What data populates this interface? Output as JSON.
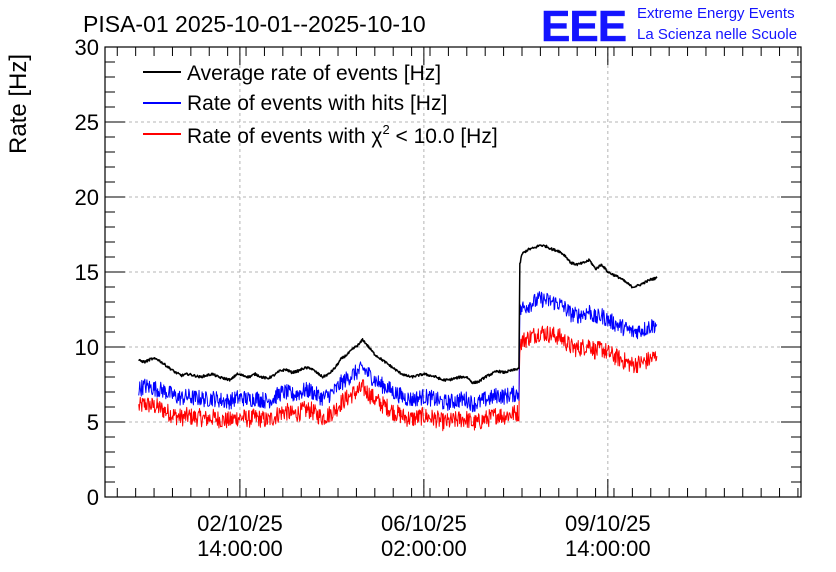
{
  "chart_data": {
    "type": "line",
    "title": "PISA-01 2025-10-01--2025-10-10",
    "ylabel": "Rate [Hz]",
    "xlabel": "",
    "ylim": [
      0,
      30
    ],
    "y_ticks": [
      0,
      5,
      10,
      15,
      20,
      25,
      30
    ],
    "y_tick_labels": [
      "0",
      "5",
      "10",
      "15",
      "20",
      "25",
      "30"
    ],
    "x_range_hours": [
      0,
      227
    ],
    "x_ticks": [
      {
        "hours": 44,
        "date": "02/10/25",
        "time": "14:00:00"
      },
      {
        "hours": 104,
        "date": "06/10/25",
        "time": "02:00:00"
      },
      {
        "hours": 164,
        "date": "09/10/25",
        "time": "14:00:00"
      }
    ],
    "grid": true,
    "legend_position": "top-left",
    "logo": {
      "text": "EEE",
      "line1": "Extreme Energy Events",
      "line2": "La Scienza nelle Scuole",
      "color": "#1414ff"
    },
    "series": [
      {
        "name": "Average rate of events [Hz]",
        "label_main": "Average rate of events [Hz]",
        "color": "#000000",
        "noise": 0.08,
        "points": [
          [
            11,
            9.1
          ],
          [
            13,
            9.0
          ],
          [
            15,
            9.2
          ],
          [
            17,
            9.2
          ],
          [
            19,
            8.9
          ],
          [
            21,
            8.6
          ],
          [
            23,
            8.3
          ],
          [
            25,
            8.1
          ],
          [
            27,
            8.2
          ],
          [
            29,
            8.1
          ],
          [
            31,
            8.0
          ],
          [
            33,
            8.1
          ],
          [
            35,
            8.2
          ],
          [
            37,
            8.0
          ],
          [
            39,
            7.9
          ],
          [
            41,
            7.8
          ],
          [
            43,
            8.2
          ],
          [
            45,
            8.1
          ],
          [
            47,
            8.0
          ],
          [
            49,
            8.2
          ],
          [
            51,
            8.0
          ],
          [
            53,
            7.9
          ],
          [
            55,
            8.1
          ],
          [
            57,
            8.4
          ],
          [
            59,
            8.5
          ],
          [
            61,
            8.3
          ],
          [
            63,
            8.4
          ],
          [
            65,
            8.6
          ],
          [
            67,
            8.6
          ],
          [
            69,
            8.3
          ],
          [
            71,
            8.0
          ],
          [
            73,
            8.2
          ],
          [
            75,
            8.6
          ],
          [
            77,
            9.2
          ],
          [
            79,
            9.5
          ],
          [
            81,
            9.9
          ],
          [
            83,
            10.2
          ],
          [
            84,
            10.5
          ],
          [
            86,
            10.0
          ],
          [
            88,
            9.5
          ],
          [
            90,
            9.2
          ],
          [
            92,
            8.9
          ],
          [
            94,
            8.6
          ],
          [
            96,
            8.3
          ],
          [
            98,
            8.1
          ],
          [
            100,
            8.0
          ],
          [
            102,
            8.1
          ],
          [
            104,
            8.2
          ],
          [
            106,
            8.1
          ],
          [
            108,
            8.0
          ],
          [
            110,
            7.8
          ],
          [
            112,
            7.8
          ],
          [
            114,
            7.9
          ],
          [
            116,
            8.0
          ],
          [
            118,
            8.0
          ],
          [
            120,
            7.6
          ],
          [
            122,
            7.7
          ],
          [
            124,
            8.0
          ],
          [
            126,
            8.2
          ],
          [
            128,
            8.4
          ],
          [
            130,
            8.3
          ],
          [
            132,
            8.4
          ],
          [
            134,
            8.5
          ],
          [
            135,
            8.6
          ],
          [
            135.3,
            15.5
          ],
          [
            136,
            16.2
          ],
          [
            138,
            16.5
          ],
          [
            140,
            16.6
          ],
          [
            142,
            16.8
          ],
          [
            144,
            16.7
          ],
          [
            146,
            16.5
          ],
          [
            148,
            16.4
          ],
          [
            150,
            16.1
          ],
          [
            152,
            15.6
          ],
          [
            154,
            15.5
          ],
          [
            156,
            15.6
          ],
          [
            158,
            15.8
          ],
          [
            160,
            15.2
          ],
          [
            162,
            15.5
          ],
          [
            164,
            15.0
          ],
          [
            166,
            14.8
          ],
          [
            168,
            14.6
          ],
          [
            170,
            14.3
          ],
          [
            172,
            14.0
          ],
          [
            174,
            14.1
          ],
          [
            176,
            14.3
          ],
          [
            178,
            14.5
          ],
          [
            180,
            14.6
          ]
        ]
      },
      {
        "name": "Rate of events with hits [Hz]",
        "label_main": "Rate of events with hits [Hz]",
        "color": "#0000ff",
        "noise": 0.55,
        "points": [
          [
            11,
            7.2
          ],
          [
            13,
            7.4
          ],
          [
            15,
            7.3
          ],
          [
            17,
            7.2
          ],
          [
            19,
            7.1
          ],
          [
            21,
            6.9
          ],
          [
            23,
            6.7
          ],
          [
            25,
            6.6
          ],
          [
            27,
            6.7
          ],
          [
            29,
            6.6
          ],
          [
            31,
            6.6
          ],
          [
            33,
            6.5
          ],
          [
            35,
            6.6
          ],
          [
            37,
            6.5
          ],
          [
            39,
            6.4
          ],
          [
            41,
            6.4
          ],
          [
            43,
            6.6
          ],
          [
            45,
            6.6
          ],
          [
            47,
            6.5
          ],
          [
            49,
            6.6
          ],
          [
            51,
            6.5
          ],
          [
            53,
            6.4
          ],
          [
            55,
            6.6
          ],
          [
            57,
            6.9
          ],
          [
            59,
            7.0
          ],
          [
            61,
            6.8
          ],
          [
            63,
            6.9
          ],
          [
            65,
            7.1
          ],
          [
            67,
            7.1
          ],
          [
            69,
            6.8
          ],
          [
            71,
            6.6
          ],
          [
            73,
            6.8
          ],
          [
            75,
            7.1
          ],
          [
            77,
            7.6
          ],
          [
            79,
            7.9
          ],
          [
            81,
            8.2
          ],
          [
            83,
            8.4
          ],
          [
            84,
            8.6
          ],
          [
            86,
            8.2
          ],
          [
            88,
            7.8
          ],
          [
            90,
            7.5
          ],
          [
            92,
            7.3
          ],
          [
            94,
            7.0
          ],
          [
            96,
            6.8
          ],
          [
            98,
            6.6
          ],
          [
            100,
            6.5
          ],
          [
            102,
            6.6
          ],
          [
            104,
            6.7
          ],
          [
            106,
            6.6
          ],
          [
            108,
            6.5
          ],
          [
            110,
            6.3
          ],
          [
            112,
            6.3
          ],
          [
            114,
            6.4
          ],
          [
            116,
            6.5
          ],
          [
            118,
            6.5
          ],
          [
            120,
            6.2
          ],
          [
            122,
            6.3
          ],
          [
            124,
            6.5
          ],
          [
            126,
            6.6
          ],
          [
            128,
            6.8
          ],
          [
            130,
            6.7
          ],
          [
            132,
            6.8
          ],
          [
            134,
            6.9
          ],
          [
            135,
            6.9
          ],
          [
            135.3,
            12.3
          ],
          [
            136,
            12.6
          ],
          [
            138,
            12.8
          ],
          [
            140,
            13.0
          ],
          [
            142,
            13.2
          ],
          [
            144,
            13.1
          ],
          [
            146,
            13.0
          ],
          [
            148,
            12.9
          ],
          [
            150,
            12.6
          ],
          [
            152,
            12.2
          ],
          [
            154,
            12.1
          ],
          [
            156,
            12.2
          ],
          [
            158,
            12.4
          ],
          [
            160,
            11.9
          ],
          [
            162,
            12.1
          ],
          [
            164,
            11.8
          ],
          [
            166,
            11.6
          ],
          [
            168,
            11.4
          ],
          [
            170,
            11.2
          ],
          [
            172,
            11.0
          ],
          [
            174,
            11.1
          ],
          [
            176,
            11.2
          ],
          [
            178,
            11.4
          ],
          [
            180,
            11.5
          ]
        ]
      },
      {
        "name": "Rate of events with χ² < 10.0 [Hz]",
        "label_main": "Rate of events with χ",
        "label_sup": "2",
        "label_tail": " < 10.0 [Hz]",
        "color": "#ff0000",
        "noise": 0.6,
        "points": [
          [
            11,
            6.0
          ],
          [
            13,
            6.2
          ],
          [
            15,
            6.1
          ],
          [
            17,
            6.0
          ],
          [
            19,
            5.8
          ],
          [
            21,
            5.6
          ],
          [
            23,
            5.4
          ],
          [
            25,
            5.3
          ],
          [
            27,
            5.4
          ],
          [
            29,
            5.3
          ],
          [
            31,
            5.3
          ],
          [
            33,
            5.2
          ],
          [
            35,
            5.3
          ],
          [
            37,
            5.2
          ],
          [
            39,
            5.1
          ],
          [
            41,
            5.1
          ],
          [
            43,
            5.3
          ],
          [
            45,
            5.3
          ],
          [
            47,
            5.2
          ],
          [
            49,
            5.3
          ],
          [
            51,
            5.2
          ],
          [
            53,
            5.1
          ],
          [
            55,
            5.3
          ],
          [
            57,
            5.6
          ],
          [
            59,
            5.7
          ],
          [
            61,
            5.5
          ],
          [
            63,
            5.6
          ],
          [
            65,
            5.8
          ],
          [
            67,
            5.8
          ],
          [
            69,
            5.5
          ],
          [
            71,
            5.3
          ],
          [
            73,
            5.5
          ],
          [
            75,
            5.8
          ],
          [
            77,
            6.3
          ],
          [
            79,
            6.6
          ],
          [
            81,
            6.9
          ],
          [
            83,
            7.1
          ],
          [
            84,
            7.3
          ],
          [
            86,
            6.9
          ],
          [
            88,
            6.5
          ],
          [
            90,
            6.2
          ],
          [
            92,
            6.0
          ],
          [
            94,
            5.7
          ],
          [
            96,
            5.5
          ],
          [
            98,
            5.3
          ],
          [
            100,
            5.2
          ],
          [
            102,
            5.3
          ],
          [
            104,
            5.4
          ],
          [
            106,
            5.3
          ],
          [
            108,
            5.2
          ],
          [
            110,
            5.0
          ],
          [
            112,
            5.0
          ],
          [
            114,
            5.1
          ],
          [
            116,
            5.2
          ],
          [
            118,
            5.2
          ],
          [
            120,
            4.9
          ],
          [
            122,
            5.0
          ],
          [
            124,
            5.2
          ],
          [
            126,
            5.3
          ],
          [
            128,
            5.5
          ],
          [
            130,
            5.4
          ],
          [
            132,
            5.5
          ],
          [
            134,
            5.6
          ],
          [
            135,
            5.6
          ],
          [
            135.3,
            10.2
          ],
          [
            136,
            10.4
          ],
          [
            138,
            10.6
          ],
          [
            140,
            10.8
          ],
          [
            142,
            11.0
          ],
          [
            144,
            10.9
          ],
          [
            146,
            10.8
          ],
          [
            148,
            10.7
          ],
          [
            150,
            10.4
          ],
          [
            152,
            10.0
          ],
          [
            154,
            9.9
          ],
          [
            156,
            10.0
          ],
          [
            158,
            10.2
          ],
          [
            160,
            9.7
          ],
          [
            162,
            9.9
          ],
          [
            164,
            9.6
          ],
          [
            166,
            9.4
          ],
          [
            168,
            9.2
          ],
          [
            170,
            9.0
          ],
          [
            172,
            8.8
          ],
          [
            174,
            8.9
          ],
          [
            176,
            9.0
          ],
          [
            178,
            9.2
          ],
          [
            180,
            9.4
          ]
        ]
      }
    ]
  }
}
